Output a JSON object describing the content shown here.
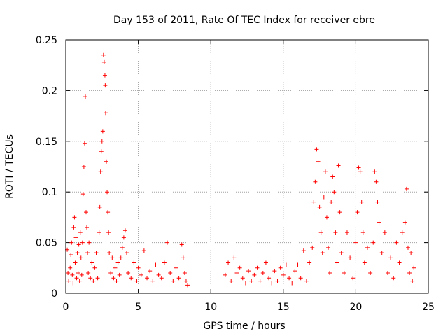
{
  "chart_data": {
    "type": "scatter",
    "title": "Day 153 of 2011, Rate Of TEC Index for receiver ebre",
    "xlabel": "GPS time / hours",
    "ylabel": "ROTI / TECUs",
    "xlim": [
      0,
      25
    ],
    "ylim": [
      0,
      0.25
    ],
    "x_ticks": [
      "0",
      "5",
      "10",
      "15",
      "20",
      "25"
    ],
    "y_ticks": [
      "0",
      "0.05",
      "0.1",
      "0.15",
      "0.2",
      "0.25"
    ],
    "grid": true,
    "legend": "none",
    "marker": "plus",
    "color": "#ff0000",
    "series": [
      {
        "points": [
          [
            0.1,
            0.043
          ],
          [
            0.15,
            0.02
          ],
          [
            0.2,
            0.012
          ],
          [
            0.3,
            0.025
          ],
          [
            0.35,
            0.038
          ],
          [
            0.4,
            0.05
          ],
          [
            0.45,
            0.018
          ],
          [
            0.5,
            0.01
          ],
          [
            0.55,
            0.065
          ],
          [
            0.6,
            0.075
          ],
          [
            0.65,
            0.03
          ],
          [
            0.7,
            0.055
          ],
          [
            0.75,
            0.015
          ],
          [
            0.8,
            0.04
          ],
          [
            0.85,
            0.02
          ],
          [
            0.9,
            0.048
          ],
          [
            0.95,
            0.012
          ],
          [
            1.0,
            0.06
          ],
          [
            1.05,
            0.035
          ],
          [
            1.1,
            0.018
          ],
          [
            1.15,
            0.05
          ],
          [
            1.2,
            0.098
          ],
          [
            1.25,
            0.125
          ],
          [
            1.3,
            0.148
          ],
          [
            1.35,
            0.194
          ],
          [
            1.4,
            0.08
          ],
          [
            1.45,
            0.065
          ],
          [
            1.5,
            0.04
          ],
          [
            1.55,
            0.02
          ],
          [
            1.6,
            0.05
          ],
          [
            1.7,
            0.015
          ],
          [
            1.8,
            0.03
          ],
          [
            1.9,
            0.012
          ],
          [
            2.0,
            0.025
          ],
          [
            2.1,
            0.04
          ],
          [
            2.2,
            0.015
          ],
          [
            2.3,
            0.06
          ],
          [
            2.35,
            0.085
          ],
          [
            2.4,
            0.12
          ],
          [
            2.45,
            0.14
          ],
          [
            2.5,
            0.15
          ],
          [
            2.55,
            0.16
          ],
          [
            2.6,
            0.235
          ],
          [
            2.65,
            0.228
          ],
          [
            2.7,
            0.215
          ],
          [
            2.72,
            0.205
          ],
          [
            2.75,
            0.178
          ],
          [
            2.8,
            0.13
          ],
          [
            2.85,
            0.1
          ],
          [
            2.9,
            0.08
          ],
          [
            2.95,
            0.06
          ],
          [
            3.0,
            0.04
          ],
          [
            3.1,
            0.02
          ],
          [
            3.2,
            0.035
          ],
          [
            3.3,
            0.015
          ],
          [
            3.4,
            0.025
          ],
          [
            3.5,
            0.012
          ],
          [
            3.6,
            0.03
          ],
          [
            3.7,
            0.018
          ],
          [
            3.8,
            0.035
          ],
          [
            3.9,
            0.045
          ],
          [
            4.0,
            0.055
          ],
          [
            4.1,
            0.062
          ],
          [
            4.2,
            0.04
          ],
          [
            4.3,
            0.02
          ],
          [
            4.5,
            0.015
          ],
          [
            4.7,
            0.03
          ],
          [
            4.9,
            0.012
          ],
          [
            5.0,
            0.025
          ],
          [
            5.2,
            0.018
          ],
          [
            5.4,
            0.042
          ],
          [
            5.6,
            0.015
          ],
          [
            5.8,
            0.022
          ],
          [
            6.0,
            0.012
          ],
          [
            6.2,
            0.028
          ],
          [
            6.4,
            0.018
          ],
          [
            6.6,
            0.015
          ],
          [
            6.8,
            0.03
          ],
          [
            7.0,
            0.05
          ],
          [
            7.2,
            0.02
          ],
          [
            7.4,
            0.012
          ],
          [
            7.6,
            0.025
          ],
          [
            7.8,
            0.015
          ],
          [
            8.0,
            0.048
          ],
          [
            8.1,
            0.035
          ],
          [
            8.2,
            0.02
          ],
          [
            8.3,
            0.012
          ],
          [
            8.4,
            0.008
          ],
          [
            11.0,
            0.018
          ],
          [
            11.2,
            0.03
          ],
          [
            11.4,
            0.012
          ],
          [
            11.6,
            0.035
          ],
          [
            11.8,
            0.02
          ],
          [
            12.0,
            0.025
          ],
          [
            12.2,
            0.015
          ],
          [
            12.4,
            0.01
          ],
          [
            12.6,
            0.022
          ],
          [
            12.8,
            0.012
          ],
          [
            13.0,
            0.018
          ],
          [
            13.2,
            0.025
          ],
          [
            13.4,
            0.012
          ],
          [
            13.6,
            0.02
          ],
          [
            13.8,
            0.03
          ],
          [
            14.0,
            0.015
          ],
          [
            14.2,
            0.01
          ],
          [
            14.4,
            0.022
          ],
          [
            14.6,
            0.012
          ],
          [
            14.8,
            0.025
          ],
          [
            15.0,
            0.018
          ],
          [
            15.2,
            0.028
          ],
          [
            15.4,
            0.015
          ],
          [
            15.6,
            0.01
          ],
          [
            15.8,
            0.022
          ],
          [
            16.0,
            0.028
          ],
          [
            16.2,
            0.015
          ],
          [
            16.4,
            0.042
          ],
          [
            16.6,
            0.012
          ],
          [
            16.8,
            0.03
          ],
          [
            17.0,
            0.045
          ],
          [
            17.1,
            0.09
          ],
          [
            17.2,
            0.11
          ],
          [
            17.3,
            0.142
          ],
          [
            17.4,
            0.13
          ],
          [
            17.5,
            0.085
          ],
          [
            17.6,
            0.06
          ],
          [
            17.7,
            0.04
          ],
          [
            17.8,
            0.095
          ],
          [
            17.9,
            0.12
          ],
          [
            18.0,
            0.075
          ],
          [
            18.1,
            0.045
          ],
          [
            18.2,
            0.02
          ],
          [
            18.3,
            0.09
          ],
          [
            18.4,
            0.115
          ],
          [
            18.5,
            0.1
          ],
          [
            18.6,
            0.06
          ],
          [
            18.7,
            0.03
          ],
          [
            18.8,
            0.126
          ],
          [
            18.9,
            0.08
          ],
          [
            19.0,
            0.04
          ],
          [
            19.2,
            0.02
          ],
          [
            19.4,
            0.06
          ],
          [
            19.6,
            0.035
          ],
          [
            19.8,
            0.015
          ],
          [
            20.0,
            0.05
          ],
          [
            20.1,
            0.08
          ],
          [
            20.2,
            0.124
          ],
          [
            20.3,
            0.12
          ],
          [
            20.4,
            0.09
          ],
          [
            20.5,
            0.06
          ],
          [
            20.6,
            0.03
          ],
          [
            20.8,
            0.045
          ],
          [
            21.0,
            0.02
          ],
          [
            21.2,
            0.05
          ],
          [
            21.3,
            0.12
          ],
          [
            21.4,
            0.11
          ],
          [
            21.5,
            0.09
          ],
          [
            21.6,
            0.07
          ],
          [
            21.8,
            0.04
          ],
          [
            22.0,
            0.06
          ],
          [
            22.2,
            0.02
          ],
          [
            22.4,
            0.035
          ],
          [
            22.6,
            0.015
          ],
          [
            22.8,
            0.05
          ],
          [
            23.0,
            0.03
          ],
          [
            23.2,
            0.06
          ],
          [
            23.4,
            0.07
          ],
          [
            23.5,
            0.103
          ],
          [
            23.6,
            0.045
          ],
          [
            23.7,
            0.02
          ],
          [
            23.8,
            0.04
          ],
          [
            23.9,
            0.012
          ],
          [
            24.0,
            0.025
          ]
        ]
      }
    ]
  }
}
